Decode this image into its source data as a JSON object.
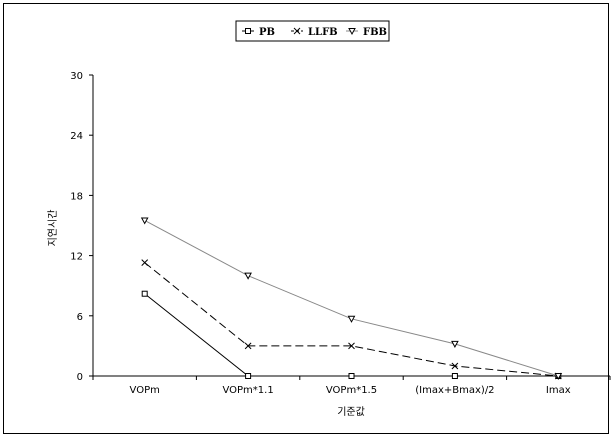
{
  "chart_data": {
    "type": "line",
    "categories": [
      "VOPm",
      "VOPm*1.1",
      "VOPm*1.5",
      "(Imax+Bmax)/2",
      "Imax"
    ],
    "series": [
      {
        "name": "PB",
        "values": [
          8.2,
          0,
          0,
          0,
          0
        ],
        "color": "#000000",
        "dash": "solid",
        "marker": "square"
      },
      {
        "name": "LLFB",
        "values": [
          11.3,
          3.0,
          3.0,
          1.0,
          0
        ],
        "color": "#000000",
        "dash": "dashed",
        "marker": "x"
      },
      {
        "name": "FBB",
        "values": [
          15.5,
          10.0,
          5.7,
          3.2,
          0
        ],
        "color": "#888888",
        "dash": "solid",
        "marker": "triangle-down"
      }
    ],
    "yticks": [
      "0",
      "6",
      "12",
      "18",
      "24",
      "30"
    ],
    "ylim": [
      0,
      30
    ],
    "xlabel": "기준값",
    "ylabel": "지연시간",
    "legend_position": "top-center",
    "grid": false
  }
}
